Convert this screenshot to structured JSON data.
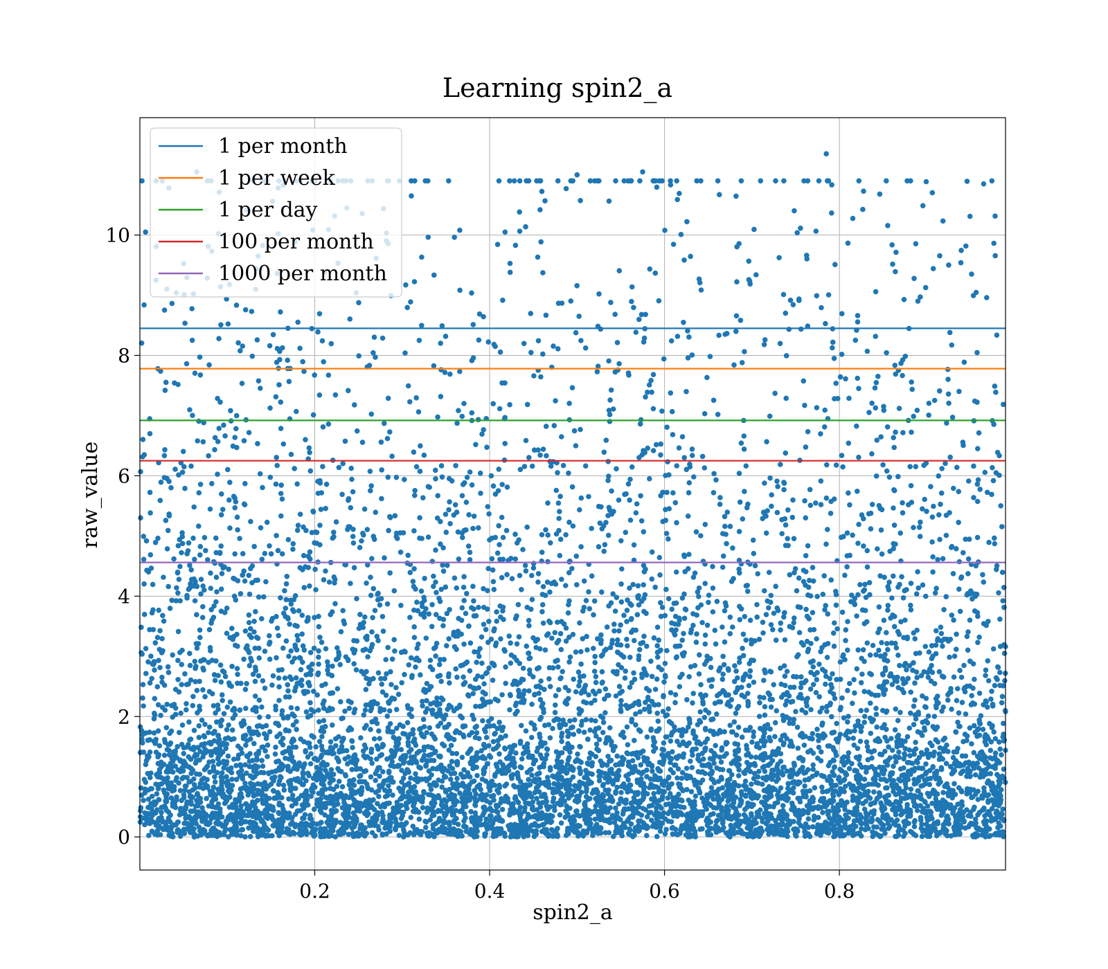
{
  "chart_data": {
    "type": "scatter",
    "title": "Learning spin2_a",
    "xlabel": "spin2_a",
    "ylabel": "raw_value",
    "xlim": [
      0.0,
      0.99
    ],
    "ylim": [
      -0.55,
      11.95
    ],
    "xticks": [
      0.2,
      0.4,
      0.6,
      0.8
    ],
    "xtick_labels": [
      "0.2",
      "0.4",
      "0.6",
      "0.8"
    ],
    "yticks": [
      0,
      2,
      4,
      6,
      8,
      10
    ],
    "ytick_labels": [
      "0",
      "2",
      "4",
      "6",
      "8",
      "10"
    ],
    "grid": true,
    "legend_position": "top-left",
    "scatter_color": "#1f77b4",
    "scatter": {
      "x_range": [
        0.0,
        0.99
      ],
      "y_range": [
        0.0,
        11.4
      ],
      "approx_count": 20000,
      "distribution": "dense near 0 and thinning toward ~11",
      "notable_points": [
        {
          "x": 0.785,
          "y": 11.35
        },
        {
          "x": 0.575,
          "y": 11.05
        },
        {
          "x": 0.5,
          "y": 11.0
        },
        {
          "x": 0.065,
          "y": 11.05
        },
        {
          "x": 0.965,
          "y": 10.85
        },
        {
          "x": 0.525,
          "y": 10.9
        }
      ]
    },
    "series": [
      {
        "name": "1 per month",
        "y": 8.45,
        "color": "#1f77b4"
      },
      {
        "name": "1 per week",
        "y": 7.78,
        "color": "#ff7f0e"
      },
      {
        "name": "1 per day",
        "y": 6.92,
        "color": "#2ca02c"
      },
      {
        "name": "100 per month",
        "y": 6.25,
        "color": "#d62728"
      },
      {
        "name": "1000 per month",
        "y": 4.56,
        "color": "#9467bd"
      }
    ]
  }
}
